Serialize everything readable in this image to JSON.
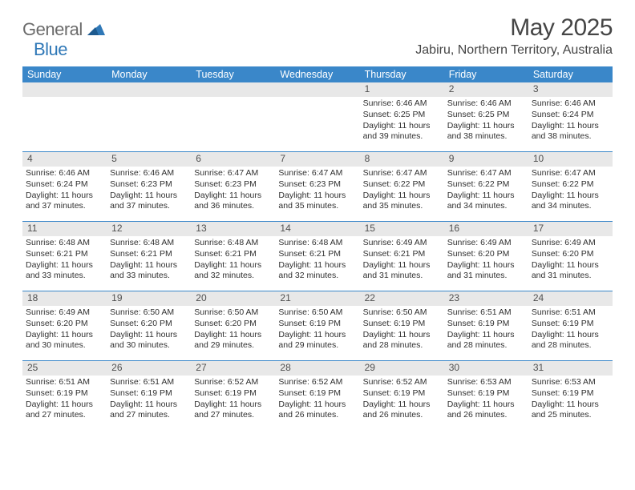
{
  "logo": {
    "word1": "General",
    "word2": "Blue"
  },
  "title": "May 2025",
  "location": "Jabiru, Northern Territory, Australia",
  "colors": {
    "header_bg": "#3a87c9",
    "header_text": "#ffffff",
    "daynum_bg": "#e8e8e8",
    "text": "#303030",
    "divider": "#3a87c9",
    "logo_gray": "#6b6b6b",
    "logo_blue": "#2f78b7"
  },
  "day_names": [
    "Sunday",
    "Monday",
    "Tuesday",
    "Wednesday",
    "Thursday",
    "Friday",
    "Saturday"
  ],
  "weeks": [
    [
      {
        "n": "",
        "sr": "",
        "ss": "",
        "dl": ""
      },
      {
        "n": "",
        "sr": "",
        "ss": "",
        "dl": ""
      },
      {
        "n": "",
        "sr": "",
        "ss": "",
        "dl": ""
      },
      {
        "n": "",
        "sr": "",
        "ss": "",
        "dl": ""
      },
      {
        "n": "1",
        "sr": "6:46 AM",
        "ss": "6:25 PM",
        "dl": "11 hours and 39 minutes."
      },
      {
        "n": "2",
        "sr": "6:46 AM",
        "ss": "6:25 PM",
        "dl": "11 hours and 38 minutes."
      },
      {
        "n": "3",
        "sr": "6:46 AM",
        "ss": "6:24 PM",
        "dl": "11 hours and 38 minutes."
      }
    ],
    [
      {
        "n": "4",
        "sr": "6:46 AM",
        "ss": "6:24 PM",
        "dl": "11 hours and 37 minutes."
      },
      {
        "n": "5",
        "sr": "6:46 AM",
        "ss": "6:23 PM",
        "dl": "11 hours and 37 minutes."
      },
      {
        "n": "6",
        "sr": "6:47 AM",
        "ss": "6:23 PM",
        "dl": "11 hours and 36 minutes."
      },
      {
        "n": "7",
        "sr": "6:47 AM",
        "ss": "6:23 PM",
        "dl": "11 hours and 35 minutes."
      },
      {
        "n": "8",
        "sr": "6:47 AM",
        "ss": "6:22 PM",
        "dl": "11 hours and 35 minutes."
      },
      {
        "n": "9",
        "sr": "6:47 AM",
        "ss": "6:22 PM",
        "dl": "11 hours and 34 minutes."
      },
      {
        "n": "10",
        "sr": "6:47 AM",
        "ss": "6:22 PM",
        "dl": "11 hours and 34 minutes."
      }
    ],
    [
      {
        "n": "11",
        "sr": "6:48 AM",
        "ss": "6:21 PM",
        "dl": "11 hours and 33 minutes."
      },
      {
        "n": "12",
        "sr": "6:48 AM",
        "ss": "6:21 PM",
        "dl": "11 hours and 33 minutes."
      },
      {
        "n": "13",
        "sr": "6:48 AM",
        "ss": "6:21 PM",
        "dl": "11 hours and 32 minutes."
      },
      {
        "n": "14",
        "sr": "6:48 AM",
        "ss": "6:21 PM",
        "dl": "11 hours and 32 minutes."
      },
      {
        "n": "15",
        "sr": "6:49 AM",
        "ss": "6:21 PM",
        "dl": "11 hours and 31 minutes."
      },
      {
        "n": "16",
        "sr": "6:49 AM",
        "ss": "6:20 PM",
        "dl": "11 hours and 31 minutes."
      },
      {
        "n": "17",
        "sr": "6:49 AM",
        "ss": "6:20 PM",
        "dl": "11 hours and 31 minutes."
      }
    ],
    [
      {
        "n": "18",
        "sr": "6:49 AM",
        "ss": "6:20 PM",
        "dl": "11 hours and 30 minutes."
      },
      {
        "n": "19",
        "sr": "6:50 AM",
        "ss": "6:20 PM",
        "dl": "11 hours and 30 minutes."
      },
      {
        "n": "20",
        "sr": "6:50 AM",
        "ss": "6:20 PM",
        "dl": "11 hours and 29 minutes."
      },
      {
        "n": "21",
        "sr": "6:50 AM",
        "ss": "6:19 PM",
        "dl": "11 hours and 29 minutes."
      },
      {
        "n": "22",
        "sr": "6:50 AM",
        "ss": "6:19 PM",
        "dl": "11 hours and 28 minutes."
      },
      {
        "n": "23",
        "sr": "6:51 AM",
        "ss": "6:19 PM",
        "dl": "11 hours and 28 minutes."
      },
      {
        "n": "24",
        "sr": "6:51 AM",
        "ss": "6:19 PM",
        "dl": "11 hours and 28 minutes."
      }
    ],
    [
      {
        "n": "25",
        "sr": "6:51 AM",
        "ss": "6:19 PM",
        "dl": "11 hours and 27 minutes."
      },
      {
        "n": "26",
        "sr": "6:51 AM",
        "ss": "6:19 PM",
        "dl": "11 hours and 27 minutes."
      },
      {
        "n": "27",
        "sr": "6:52 AM",
        "ss": "6:19 PM",
        "dl": "11 hours and 27 minutes."
      },
      {
        "n": "28",
        "sr": "6:52 AM",
        "ss": "6:19 PM",
        "dl": "11 hours and 26 minutes."
      },
      {
        "n": "29",
        "sr": "6:52 AM",
        "ss": "6:19 PM",
        "dl": "11 hours and 26 minutes."
      },
      {
        "n": "30",
        "sr": "6:53 AM",
        "ss": "6:19 PM",
        "dl": "11 hours and 26 minutes."
      },
      {
        "n": "31",
        "sr": "6:53 AM",
        "ss": "6:19 PM",
        "dl": "11 hours and 25 minutes."
      }
    ]
  ],
  "labels": {
    "sunrise": "Sunrise:",
    "sunset": "Sunset:",
    "daylight": "Daylight:"
  }
}
